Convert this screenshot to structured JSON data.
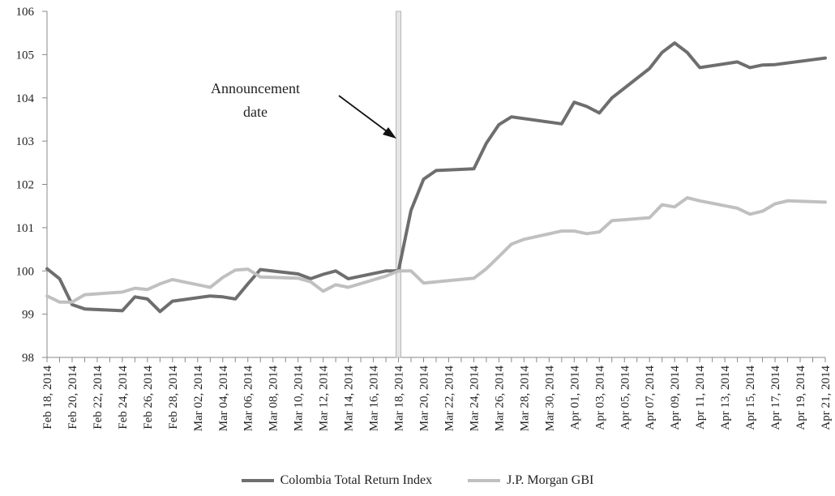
{
  "chart_data": {
    "type": "line",
    "ylim": [
      98,
      106
    ],
    "yticks": [
      98,
      99,
      100,
      101,
      102,
      103,
      104,
      105,
      106
    ],
    "x_start": "2014-02-18",
    "x_end": "2014-04-21",
    "xtick_labels": [
      "Feb 18, 2014",
      "Feb 20, 2014",
      "Feb 22, 2014",
      "Feb 24, 2014",
      "Feb 26, 2014",
      "Feb 28, 2014",
      "Mar 02, 2014",
      "Mar 04, 2014",
      "Mar 06, 2014",
      "Mar 08, 2014",
      "Mar 10, 2014",
      "Mar 12, 2014",
      "Mar 14, 2014",
      "Mar 16, 2014",
      "Mar 18, 2014",
      "Mar 20, 2014",
      "Mar 22, 2014",
      "Mar 24, 2014",
      "Mar 26, 2014",
      "Mar 28, 2014",
      "Mar 30, 2014",
      "Apr 01, 2014",
      "Apr 03, 2014",
      "Apr 05, 2014",
      "Apr 07, 2014",
      "Apr 09, 2014",
      "Apr 11, 2014",
      "Apr 13, 2014",
      "Apr 15, 2014",
      "Apr 17, 2014",
      "Apr 19, 2014",
      "Apr 21, 2014"
    ],
    "announcement_date": "2014-03-18",
    "annotation_text": [
      "Announcement",
      "date"
    ],
    "series": [
      {
        "name": "Colombia Total Return Index",
        "color": "#6e6e6e",
        "points": [
          [
            "2014-02-18",
            100.05
          ],
          [
            "2014-02-19",
            99.82
          ],
          [
            "2014-02-20",
            99.22
          ],
          [
            "2014-02-21",
            99.12
          ],
          [
            "2014-02-24",
            99.08
          ],
          [
            "2014-02-25",
            99.4
          ],
          [
            "2014-02-26",
            99.35
          ],
          [
            "2014-02-27",
            99.06
          ],
          [
            "2014-02-28",
            99.3
          ],
          [
            "2014-03-03",
            99.42
          ],
          [
            "2014-03-04",
            99.4
          ],
          [
            "2014-03-05",
            99.35
          ],
          [
            "2014-03-06",
            99.7
          ],
          [
            "2014-03-07",
            100.03
          ],
          [
            "2014-03-10",
            99.93
          ],
          [
            "2014-03-11",
            99.82
          ],
          [
            "2014-03-12",
            99.92
          ],
          [
            "2014-03-13",
            100.0
          ],
          [
            "2014-03-14",
            99.82
          ],
          [
            "2014-03-17",
            100.0
          ],
          [
            "2014-03-18",
            100.0
          ],
          [
            "2014-03-19",
            101.4
          ],
          [
            "2014-03-20",
            102.12
          ],
          [
            "2014-03-21",
            102.32
          ],
          [
            "2014-03-24",
            102.36
          ],
          [
            "2014-03-25",
            102.95
          ],
          [
            "2014-03-26",
            103.38
          ],
          [
            "2014-03-27",
            103.56
          ],
          [
            "2014-03-31",
            103.4
          ],
          [
            "2014-04-01",
            103.9
          ],
          [
            "2014-04-02",
            103.8
          ],
          [
            "2014-04-03",
            103.65
          ],
          [
            "2014-04-04",
            104.0
          ],
          [
            "2014-04-07",
            104.68
          ],
          [
            "2014-04-08",
            105.05
          ],
          [
            "2014-04-09",
            105.27
          ],
          [
            "2014-04-10",
            105.05
          ],
          [
            "2014-04-11",
            104.7
          ],
          [
            "2014-04-14",
            104.83
          ],
          [
            "2014-04-15",
            104.7
          ],
          [
            "2014-04-16",
            104.76
          ],
          [
            "2014-04-17",
            104.77
          ],
          [
            "2014-04-21",
            104.92
          ]
        ]
      },
      {
        "name": "J.P. Morgan GBI",
        "color": "#c0c0c0",
        "points": [
          [
            "2014-02-18",
            99.42
          ],
          [
            "2014-02-19",
            99.28
          ],
          [
            "2014-02-20",
            99.28
          ],
          [
            "2014-02-21",
            99.45
          ],
          [
            "2014-02-24",
            99.51
          ],
          [
            "2014-02-25",
            99.6
          ],
          [
            "2014-02-26",
            99.57
          ],
          [
            "2014-02-27",
            99.7
          ],
          [
            "2014-02-28",
            99.8
          ],
          [
            "2014-03-03",
            99.62
          ],
          [
            "2014-03-04",
            99.85
          ],
          [
            "2014-03-05",
            100.02
          ],
          [
            "2014-03-06",
            100.04
          ],
          [
            "2014-03-07",
            99.86
          ],
          [
            "2014-03-10",
            99.83
          ],
          [
            "2014-03-11",
            99.75
          ],
          [
            "2014-03-12",
            99.53
          ],
          [
            "2014-03-13",
            99.68
          ],
          [
            "2014-03-14",
            99.62
          ],
          [
            "2014-03-17",
            99.88
          ],
          [
            "2014-03-18",
            100.0
          ],
          [
            "2014-03-19",
            100.0
          ],
          [
            "2014-03-20",
            99.72
          ],
          [
            "2014-03-24",
            99.83
          ],
          [
            "2014-03-25",
            100.05
          ],
          [
            "2014-03-26",
            100.33
          ],
          [
            "2014-03-27",
            100.62
          ],
          [
            "2014-03-28",
            100.73
          ],
          [
            "2014-03-31",
            100.92
          ],
          [
            "2014-04-01",
            100.92
          ],
          [
            "2014-04-02",
            100.86
          ],
          [
            "2014-04-03",
            100.9
          ],
          [
            "2014-04-04",
            101.16
          ],
          [
            "2014-04-07",
            101.23
          ],
          [
            "2014-04-08",
            101.53
          ],
          [
            "2014-04-09",
            101.48
          ],
          [
            "2014-04-10",
            101.69
          ],
          [
            "2014-04-11",
            101.62
          ],
          [
            "2014-04-14",
            101.45
          ],
          [
            "2014-04-15",
            101.31
          ],
          [
            "2014-04-16",
            101.38
          ],
          [
            "2014-04-17",
            101.55
          ],
          [
            "2014-04-18",
            101.62
          ],
          [
            "2014-04-21",
            101.59
          ]
        ]
      }
    ]
  }
}
